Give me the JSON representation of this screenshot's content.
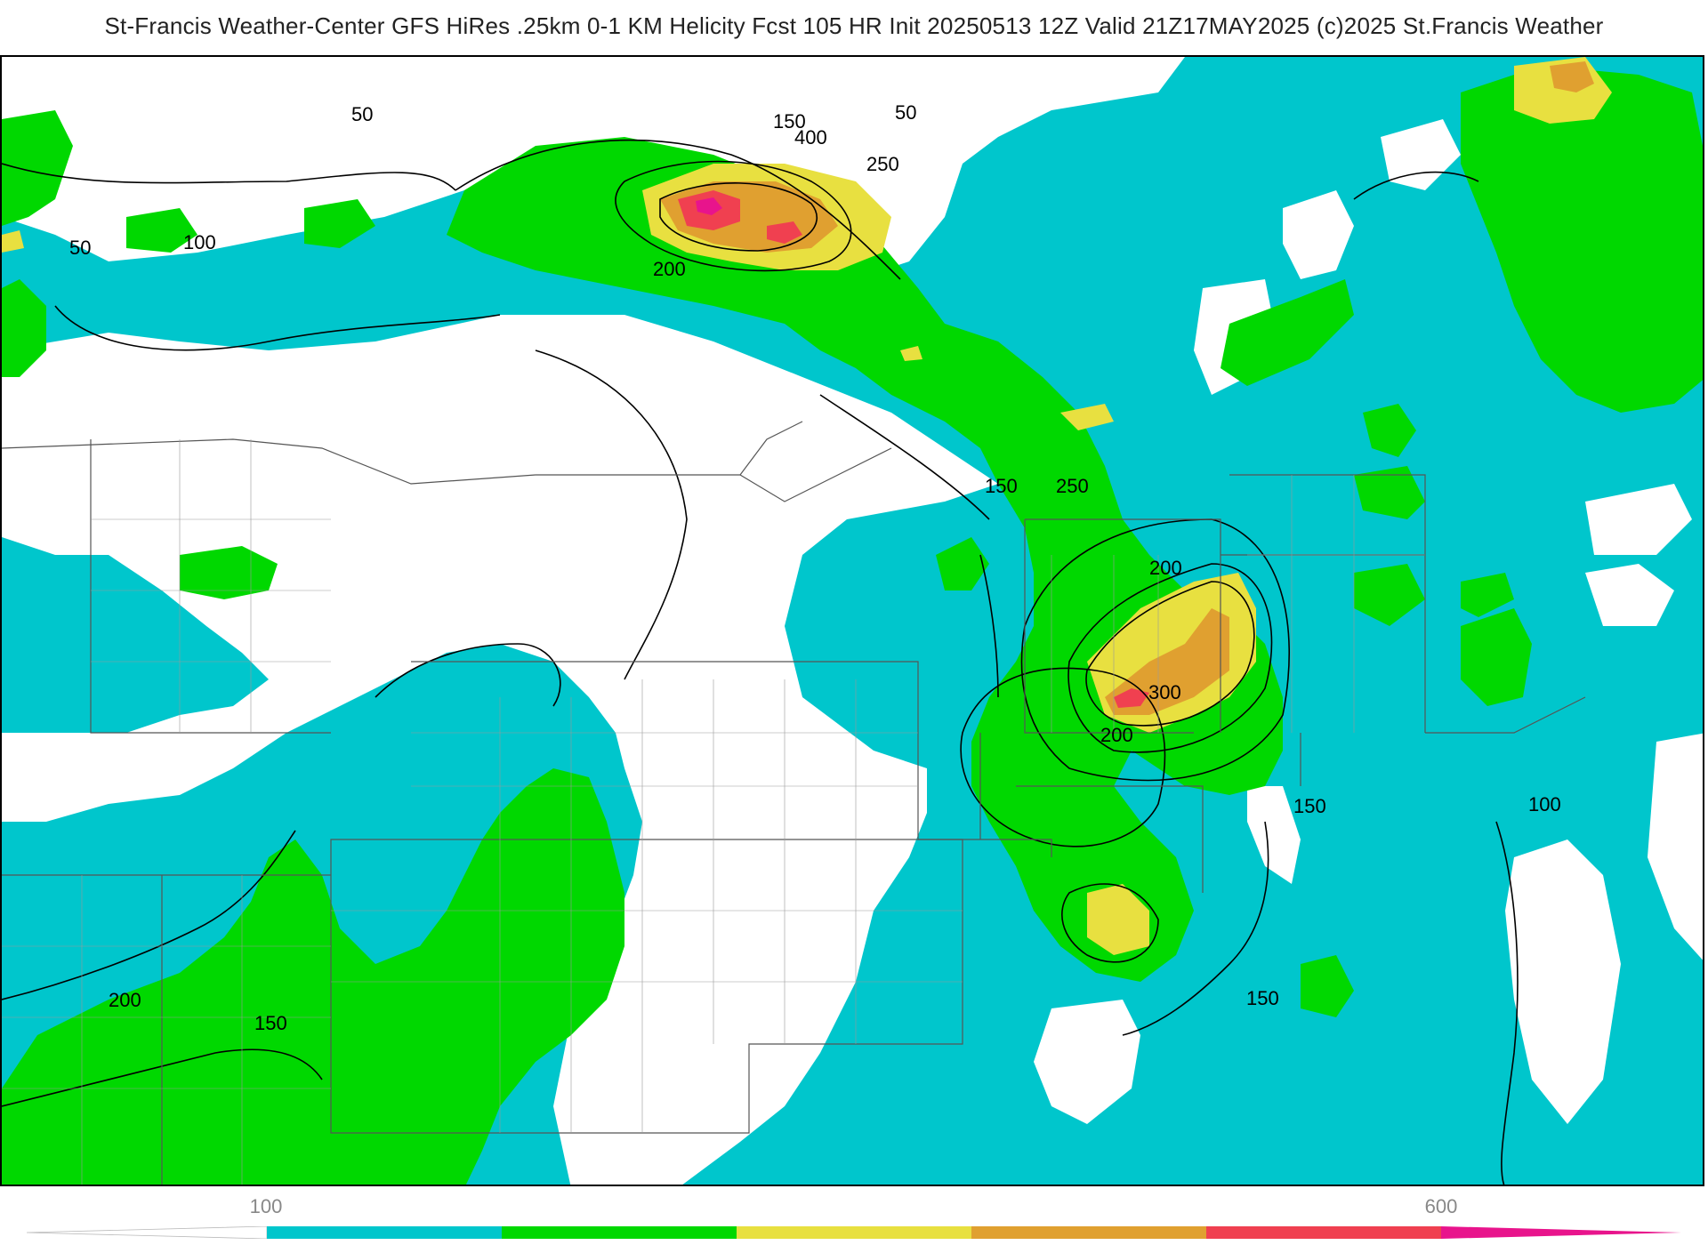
{
  "title": "St-Francis Weather-Center GFS HiRes .25km 0-1 KM Helicity Fcst 105 HR Init 20250513 12Z  Valid 21Z17MAY2025    (c)2025 St.Francis Weather",
  "colors": {
    "cyan": "#00c6cc",
    "green": "#00d800",
    "yellow": "#e8e040",
    "orange": "#e0a030",
    "red": "#f04050",
    "magenta": "#e8148c",
    "contour": "#000000",
    "border": "#555555"
  },
  "colorbar": {
    "tick_labels": [
      "100",
      "600"
    ],
    "bins": [
      {
        "from": 0,
        "to": 100,
        "color": "#ffffff"
      },
      {
        "from": 100,
        "to": 200,
        "color": "#00c6cc"
      },
      {
        "from": 200,
        "to": 300,
        "color": "#00d800"
      },
      {
        "from": 300,
        "to": 400,
        "color": "#e8e040"
      },
      {
        "from": 400,
        "to": 500,
        "color": "#e0a030"
      },
      {
        "from": 500,
        "to": 600,
        "color": "#f04050"
      },
      {
        "from": 600,
        "to": 700,
        "color": "#e8148c"
      }
    ]
  },
  "contour_labels": [
    "50",
    "150",
    "400",
    "50",
    "250",
    "50",
    "100",
    "200",
    "150",
    "250",
    "200",
    "300",
    "200",
    "150",
    "100",
    "200",
    "150",
    "150"
  ]
}
